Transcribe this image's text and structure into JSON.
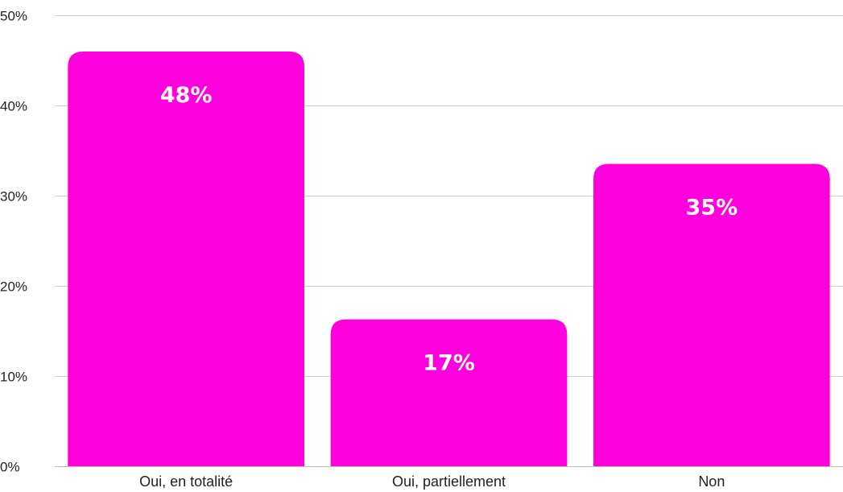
{
  "chart_data": {
    "type": "bar",
    "categories": [
      "Oui, en totalité",
      "Oui, partiellement",
      "Non"
    ],
    "values": [
      48,
      17,
      35
    ],
    "data_labels": [
      "48%",
      "17%",
      "35%"
    ],
    "title": "",
    "xlabel": "",
    "ylabel": "",
    "ylim": [
      0,
      50
    ],
    "yticks": [
      0,
      10,
      20,
      30,
      40,
      50
    ],
    "ytick_labels": [
      "0%",
      "10%",
      "20%",
      "30%",
      "40%",
      "50%"
    ],
    "grid": true,
    "legend": "none",
    "bar_color": "#ff00dd",
    "label_color": "#ffffff"
  }
}
